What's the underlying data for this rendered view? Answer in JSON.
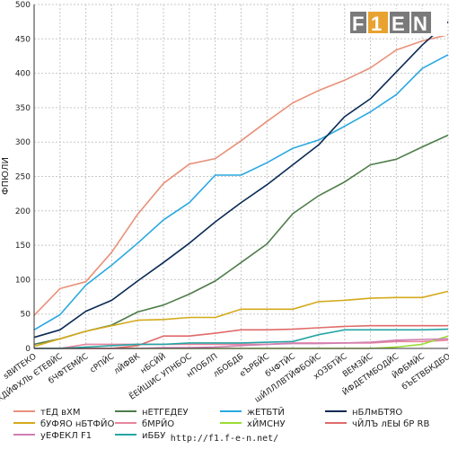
{
  "logo_text": "F1EN",
  "footer_url": "http://f1.f-e-n.net/",
  "chart_data": {
    "type": "line",
    "ylabel": "ФПЮЛИ",
    "ylim": [
      0,
      500
    ],
    "yticks": [
      0,
      50,
      100,
      150,
      200,
      250,
      300,
      350,
      400,
      450,
      500
    ],
    "grid": true,
    "legend_position": "bottom",
    "categories": [
      "ѕВИТЕКО",
      "ЅХДЙФХЛЬ ЄТЕВЙС",
      "бЧФТЕМЙС",
      "сРПЙС",
      "лЙФВК",
      "нБСЙЙ",
      "ЁЕЙШИС УПНБОС",
      "нПОБЛП",
      "лБОБДБ",
      "еЪРБЙС",
      "бЧФТЙС",
      "шЙЛЛЛВТЙФБОЙС",
      "хОЗБТЙС",
      "ВЕМЗЙС",
      "ЙФДЕТМБОДЙС",
      "ЙФБМЙС",
      "бЪЕТВБКДБО"
    ],
    "series": [
      {
        "name": "тЕД вХМ",
        "color": "#e8917a",
        "values": [
          48,
          87,
          97,
          140,
          195,
          240,
          268,
          276,
          302,
          330,
          357,
          375,
          390,
          408,
          434,
          447,
          456
        ]
      },
      {
        "name": "нЕТГЕДЕУ",
        "color": "#4e7d4a",
        "values": [
          6,
          14,
          25,
          34,
          53,
          63,
          79,
          98,
          125,
          152,
          196,
          222,
          242,
          267,
          275,
          293,
          310
        ]
      },
      {
        "name": "жЕТБТЙ",
        "color": "#29a8e0",
        "values": [
          27,
          49,
          92,
          121,
          153,
          187,
          212,
          252,
          252,
          270,
          291,
          303,
          323,
          344,
          369,
          407,
          427
        ]
      },
      {
        "name": "нБЛмБТЯО",
        "color": "#0a2a55",
        "values": [
          16,
          27,
          54,
          70,
          98,
          125,
          153,
          184,
          212,
          238,
          267,
          296,
          337,
          363,
          402,
          441,
          475
        ]
      },
      {
        "name": "бУФЯО нБТФЙО",
        "color": "#d4aa1b",
        "values": [
          3,
          14,
          25,
          33,
          41,
          42,
          45,
          45,
          57,
          57,
          57,
          68,
          70,
          73,
          74,
          74,
          83
        ]
      },
      {
        "name": "бМРЙО",
        "color": "#e8849c",
        "values": [
          0,
          0,
          6,
          6,
          6,
          6,
          6,
          6,
          6,
          6,
          8,
          8,
          8,
          8,
          10,
          10,
          12
        ]
      },
      {
        "name": "хЙМСНУ",
        "color": "#99dd33",
        "values": [
          0,
          0,
          0,
          0,
          0,
          0,
          0,
          0,
          0,
          0,
          0,
          0,
          0,
          0,
          2,
          6,
          18
        ]
      },
      {
        "name": "чЙЛЪ лЕЫ бР RB",
        "color": "#e06a6a",
        "values": [
          0,
          0,
          0,
          0,
          4,
          18,
          18,
          22,
          27,
          27,
          28,
          30,
          32,
          33,
          33,
          33,
          33
        ]
      },
      {
        "name": "уЕФЕКЛ F1",
        "color": "#cf7fb3",
        "values": [
          0,
          0,
          0,
          0,
          0,
          1,
          1,
          2,
          4,
          6,
          7,
          7,
          8,
          9,
          12,
          13,
          14
        ]
      },
      {
        "name": "иББУ",
        "color": "#26a5a5",
        "values": [
          0,
          0,
          2,
          4,
          6,
          6,
          8,
          8,
          8,
          9,
          10,
          20,
          27,
          27,
          27,
          27,
          28
        ]
      }
    ]
  }
}
